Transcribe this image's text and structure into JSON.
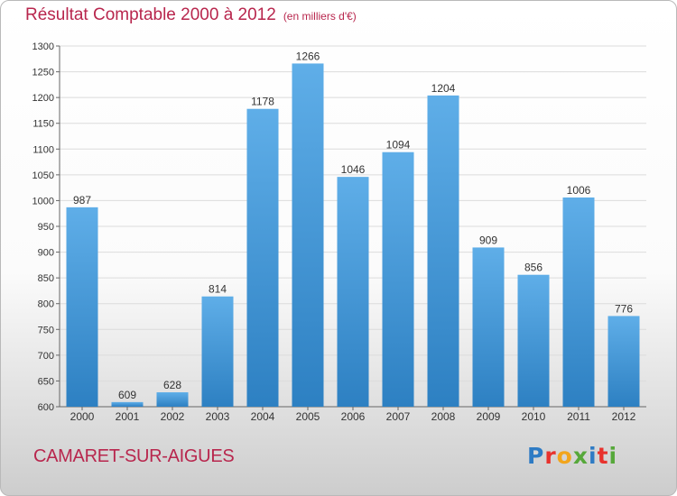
{
  "header": {
    "title": "Résultat Comptable 2000 à 2012",
    "unit": "(en milliers d'€)"
  },
  "footer": {
    "commune": "CAMARET-SUR-AIGUES",
    "brand": "Proxiti"
  },
  "colors": {
    "title": "#b8264d",
    "bar_light": "#5faee8",
    "bar_dark": "#2d80c2",
    "brand_letters": [
      "#2e7bc4",
      "#e8322d",
      "#f2a51c",
      "#56a83a",
      "#2e7bc4",
      "#e8322d",
      "#56a83a"
    ]
  },
  "chart_data": {
    "type": "bar",
    "categories": [
      "2000",
      "2001",
      "2002",
      "2003",
      "2004",
      "2005",
      "2006",
      "2007",
      "2008",
      "2009",
      "2010",
      "2011",
      "2012"
    ],
    "values": [
      987,
      609,
      628,
      814,
      1178,
      1266,
      1046,
      1094,
      1204,
      909,
      856,
      1006,
      776
    ],
    "ylim": [
      600,
      1300
    ],
    "yticks": [
      600,
      650,
      700,
      750,
      800,
      850,
      900,
      950,
      1000,
      1050,
      1100,
      1150,
      1200,
      1250,
      1300
    ],
    "grid": true,
    "xlabel": "",
    "ylabel": ""
  }
}
